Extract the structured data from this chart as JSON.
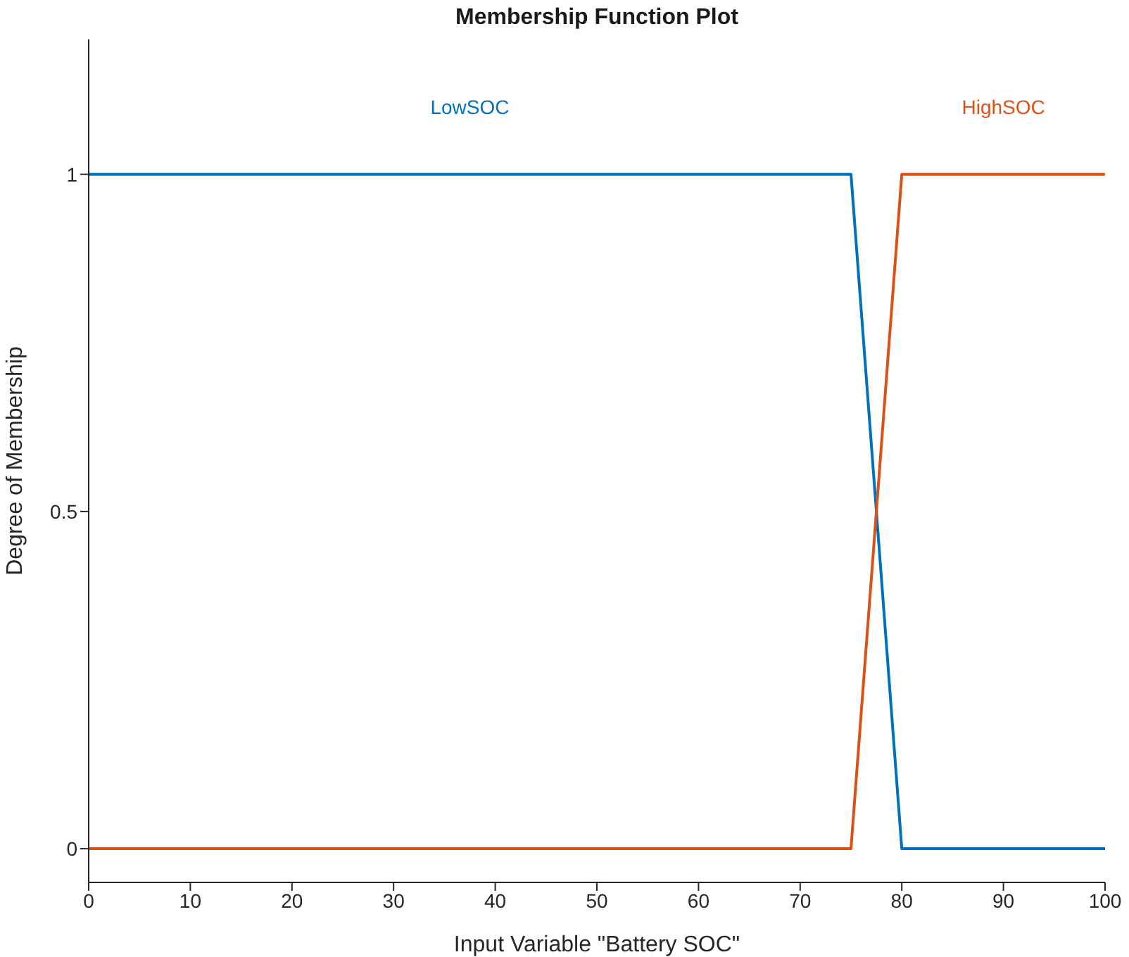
{
  "chart_data": {
    "type": "line",
    "title": "Membership Function Plot",
    "xlabel": "Input Variable \"Battery SOC\"",
    "ylabel": "Degree of Membership",
    "series": [
      {
        "name": "LowSOC",
        "color": "#0072bd",
        "x": [
          0,
          75,
          80,
          100
        ],
        "values": [
          1,
          1,
          0,
          0
        ]
      },
      {
        "name": "HighSOC",
        "color": "#d95319",
        "x": [
          0,
          75,
          80,
          100
        ],
        "values": [
          0,
          0,
          1,
          1
        ]
      }
    ],
    "xlim": [
      0,
      100
    ],
    "xticks": [
      0,
      10,
      20,
      30,
      40,
      50,
      60,
      70,
      80,
      90,
      100
    ],
    "ylim": [
      -0.05,
      1.2
    ],
    "yticks": [
      0,
      0.5,
      1
    ],
    "grid": false,
    "legend": false,
    "marker": "none",
    "line_style": "solid"
  }
}
